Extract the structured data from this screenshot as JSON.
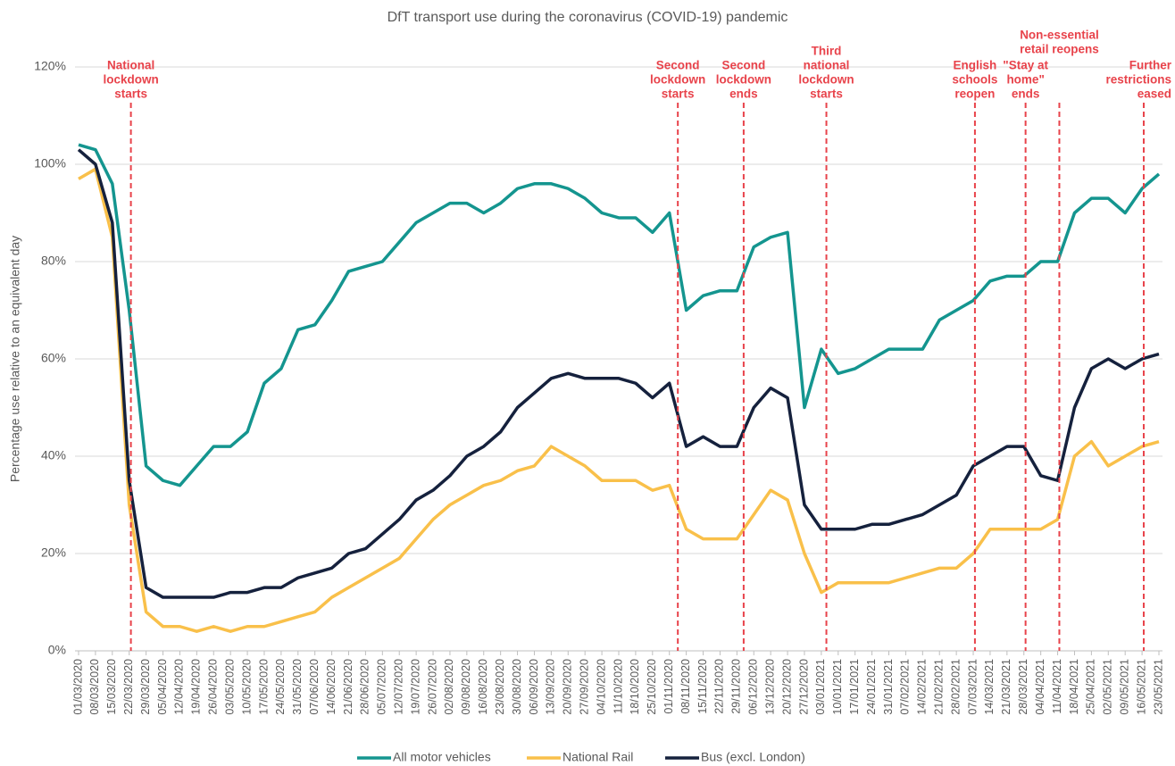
{
  "chart_data": {
    "type": "line",
    "title": "DfT transport use during the coronavirus (COVID-19) pandemic",
    "y_label": "Percentage use relative to an equivalent day",
    "categories": [
      "01/03/2020",
      "08/03/2020",
      "15/03/2020",
      "22/03/2020",
      "29/03/2020",
      "05/04/2020",
      "12/04/2020",
      "19/04/2020",
      "26/04/2020",
      "03/05/2020",
      "10/05/2020",
      "17/05/2020",
      "24/05/2020",
      "31/05/2020",
      "07/06/2020",
      "14/06/2020",
      "21/06/2020",
      "28/06/2020",
      "05/07/2020",
      "12/07/2020",
      "19/07/2020",
      "26/07/2020",
      "02/08/2020",
      "09/08/2020",
      "16/08/2020",
      "23/08/2020",
      "30/08/2020",
      "06/09/2020",
      "13/09/2020",
      "20/09/2020",
      "27/09/2020",
      "04/10/2020",
      "11/10/2020",
      "18/10/2020",
      "25/10/2020",
      "01/11/2020",
      "08/11/2020",
      "15/11/2020",
      "22/11/2020",
      "29/11/2020",
      "06/12/2020",
      "13/12/2020",
      "20/12/2020",
      "27/12/2020",
      "03/01/2021",
      "10/01/2021",
      "17/01/2021",
      "24/01/2021",
      "31/01/2021",
      "07/02/2021",
      "14/02/2021",
      "21/02/2021",
      "28/02/2021",
      "07/03/2021",
      "14/03/2021",
      "21/03/2021",
      "28/03/2021",
      "04/04/2021",
      "11/04/2021",
      "18/04/2021",
      "25/04/2021",
      "02/05/2021",
      "09/05/2021",
      "16/05/2021",
      "23/05/2021"
    ],
    "series": [
      {
        "name": "All motor vehicles",
        "color": "#14958f",
        "values": [
          104,
          103,
          96,
          70,
          38,
          35,
          34,
          38,
          42,
          42,
          45,
          55,
          58,
          66,
          67,
          72,
          78,
          79,
          80,
          84,
          88,
          90,
          92,
          92,
          90,
          92,
          95,
          96,
          96,
          95,
          93,
          90,
          89,
          89,
          86,
          90,
          70,
          73,
          74,
          74,
          83,
          85,
          86,
          50,
          62,
          57,
          58,
          60,
          62,
          62,
          62,
          68,
          70,
          72,
          76,
          77,
          77,
          80,
          80,
          90,
          93,
          93,
          90,
          95,
          98
        ]
      },
      {
        "name": "National Rail",
        "color": "#f9c04a",
        "values": [
          97,
          99,
          85,
          30,
          8,
          5,
          5,
          4,
          5,
          4,
          5,
          5,
          6,
          7,
          8,
          11,
          13,
          15,
          17,
          19,
          23,
          27,
          30,
          32,
          34,
          35,
          37,
          38,
          42,
          40,
          38,
          35,
          35,
          35,
          33,
          34,
          25,
          23,
          23,
          23,
          28,
          33,
          31,
          20,
          12,
          14,
          14,
          14,
          14,
          15,
          16,
          17,
          17,
          20,
          25,
          25,
          25,
          25,
          27,
          40,
          43,
          38,
          40,
          42,
          43
        ]
      },
      {
        "name": "Bus (excl. London)",
        "color": "#15213d",
        "values": [
          103,
          100,
          88,
          35,
          13,
          11,
          11,
          11,
          11,
          12,
          12,
          13,
          13,
          15,
          16,
          17,
          20,
          21,
          24,
          27,
          31,
          33,
          36,
          40,
          42,
          45,
          50,
          53,
          56,
          57,
          56,
          56,
          56,
          55,
          52,
          55,
          42,
          44,
          42,
          42,
          50,
          54,
          52,
          30,
          25,
          25,
          25,
          26,
          26,
          27,
          28,
          30,
          32,
          38,
          40,
          42,
          42,
          36,
          35,
          50,
          58,
          60,
          58,
          60,
          61
        ]
      }
    ],
    "ylim": [
      0,
      120
    ],
    "yticks": [
      {
        "value": 0,
        "label": "0%"
      },
      {
        "value": 20,
        "label": "20%"
      },
      {
        "value": 40,
        "label": "40%"
      },
      {
        "value": 60,
        "label": "60%"
      },
      {
        "value": 80,
        "label": "80%"
      },
      {
        "value": 100,
        "label": "100%"
      },
      {
        "value": 120,
        "label": "120%"
      }
    ],
    "grid": true,
    "legend": "bottom",
    "annotation_color": "#e8434b",
    "annotations": [
      {
        "x": 3.1,
        "text": [
          "National",
          "lockdown",
          "starts"
        ]
      },
      {
        "x": 35.5,
        "text": [
          "Second",
          "lockdown",
          "starts"
        ]
      },
      {
        "x": 39.4,
        "text": [
          "Second",
          "lockdown",
          "ends"
        ]
      },
      {
        "x": 44.3,
        "text": [
          "Third",
          "national",
          "lockdown",
          "starts"
        ]
      },
      {
        "x": 53.1,
        "text": [
          "English",
          "schools",
          "reopen"
        ]
      },
      {
        "x": 56.1,
        "text": [
          "\"Stay at",
          "home\"",
          "ends"
        ]
      },
      {
        "x": 58.1,
        "text": [
          "Non-essential",
          "retail reopens"
        ]
      },
      {
        "x": 63.1,
        "text": [
          "Further",
          "restrictions",
          "eased"
        ]
      }
    ]
  }
}
